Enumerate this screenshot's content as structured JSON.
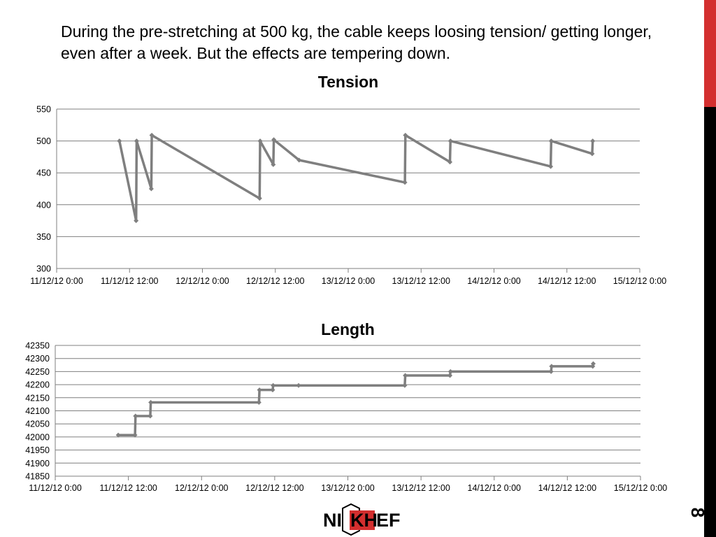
{
  "slide": {
    "caption": "During the pre-stretching at 500 kg, the cable keeps loosing tension/ getting longer, even after a week. But the effects are tempering down.",
    "number": "8",
    "logo_text": {
      "left": "NI",
      "boxed": "KH",
      "right": "EF"
    },
    "colors": {
      "accent_red": "#d32f2f",
      "side_black": "#000000",
      "series": "#7f7f7f",
      "grid": "#7f7f7f"
    }
  },
  "chart_data": [
    {
      "type": "line",
      "title": "Tension",
      "xlabel": "",
      "ylabel": "",
      "x_tick_labels": [
        "11/12/12 0:00",
        "11/12/12 12:00",
        "12/12/12 0:00",
        "12/12/12 12:00",
        "13/12/12 0:00",
        "13/12/12 12:00",
        "14/12/12 0:00",
        "14/12/12 12:00",
        "15/12/12 0:00"
      ],
      "y_ticks": [
        300,
        350,
        400,
        450,
        500,
        550
      ],
      "ylim": [
        300,
        550
      ],
      "xlim": [
        "2012-12-11 00:00",
        "2012-12-15 00:00"
      ],
      "grid": true,
      "legend": "none",
      "series": [
        {
          "name": "",
          "points": [
            {
              "x": "2012-12-11 10:20",
              "y": 500
            },
            {
              "x": "2012-12-11 13:05",
              "y": 375
            },
            {
              "x": "2012-12-11 13:10",
              "y": 500
            },
            {
              "x": "2012-12-11 15:35",
              "y": 425
            },
            {
              "x": "2012-12-11 15:40",
              "y": 509
            },
            {
              "x": "2012-12-12 09:25",
              "y": 410
            },
            {
              "x": "2012-12-12 09:30",
              "y": 500
            },
            {
              "x": "2012-12-12 11:40",
              "y": 463
            },
            {
              "x": "2012-12-12 11:45",
              "y": 502
            },
            {
              "x": "2012-12-12 15:55",
              "y": 470
            },
            {
              "x": "2012-12-13 09:20",
              "y": 435
            },
            {
              "x": "2012-12-13 09:25",
              "y": 509
            },
            {
              "x": "2012-12-13 16:45",
              "y": 467
            },
            {
              "x": "2012-12-13 16:50",
              "y": 500
            },
            {
              "x": "2012-12-14 09:20",
              "y": 460
            },
            {
              "x": "2012-12-14 09:25",
              "y": 500
            },
            {
              "x": "2012-12-14 16:10",
              "y": 480
            },
            {
              "x": "2012-12-14 16:15",
              "y": 500
            }
          ]
        }
      ]
    },
    {
      "type": "line",
      "title": "Length",
      "xlabel": "",
      "ylabel": "",
      "x_tick_labels": [
        "11/12/12 0:00",
        "11/12/12 12:00",
        "12/12/12 0:00",
        "12/12/12 12:00",
        "13/12/12 0:00",
        "13/12/12 12:00",
        "14/12/12 0:00",
        "14/12/12 12:00",
        "15/12/12 0:00"
      ],
      "y_ticks": [
        41850,
        41900,
        41950,
        42000,
        42050,
        42100,
        42150,
        42200,
        42250,
        42300,
        42350
      ],
      "ylim": [
        41850,
        42350
      ],
      "xlim": [
        "2012-12-11 00:00",
        "2012-12-15 00:00"
      ],
      "grid": true,
      "legend": "none",
      "series": [
        {
          "name": "",
          "points": [
            {
              "x": "2012-12-11 10:20",
              "y": 42007
            },
            {
              "x": "2012-12-11 13:05",
              "y": 42007
            },
            {
              "x": "2012-12-11 13:10",
              "y": 42080
            },
            {
              "x": "2012-12-11 15:35",
              "y": 42080
            },
            {
              "x": "2012-12-11 15:40",
              "y": 42132
            },
            {
              "x": "2012-12-12 09:25",
              "y": 42132
            },
            {
              "x": "2012-12-12 09:30",
              "y": 42180
            },
            {
              "x": "2012-12-12 11:40",
              "y": 42180
            },
            {
              "x": "2012-12-12 11:45",
              "y": 42197
            },
            {
              "x": "2012-12-12 15:55",
              "y": 42197
            },
            {
              "x": "2012-12-13 09:20",
              "y": 42197
            },
            {
              "x": "2012-12-13 09:25",
              "y": 42235
            },
            {
              "x": "2012-12-13 16:45",
              "y": 42235
            },
            {
              "x": "2012-12-13 16:50",
              "y": 42250
            },
            {
              "x": "2012-12-14 09:20",
              "y": 42250
            },
            {
              "x": "2012-12-14 09:25",
              "y": 42270
            },
            {
              "x": "2012-12-14 16:10",
              "y": 42270
            },
            {
              "x": "2012-12-14 16:15",
              "y": 42280
            }
          ]
        }
      ]
    }
  ]
}
